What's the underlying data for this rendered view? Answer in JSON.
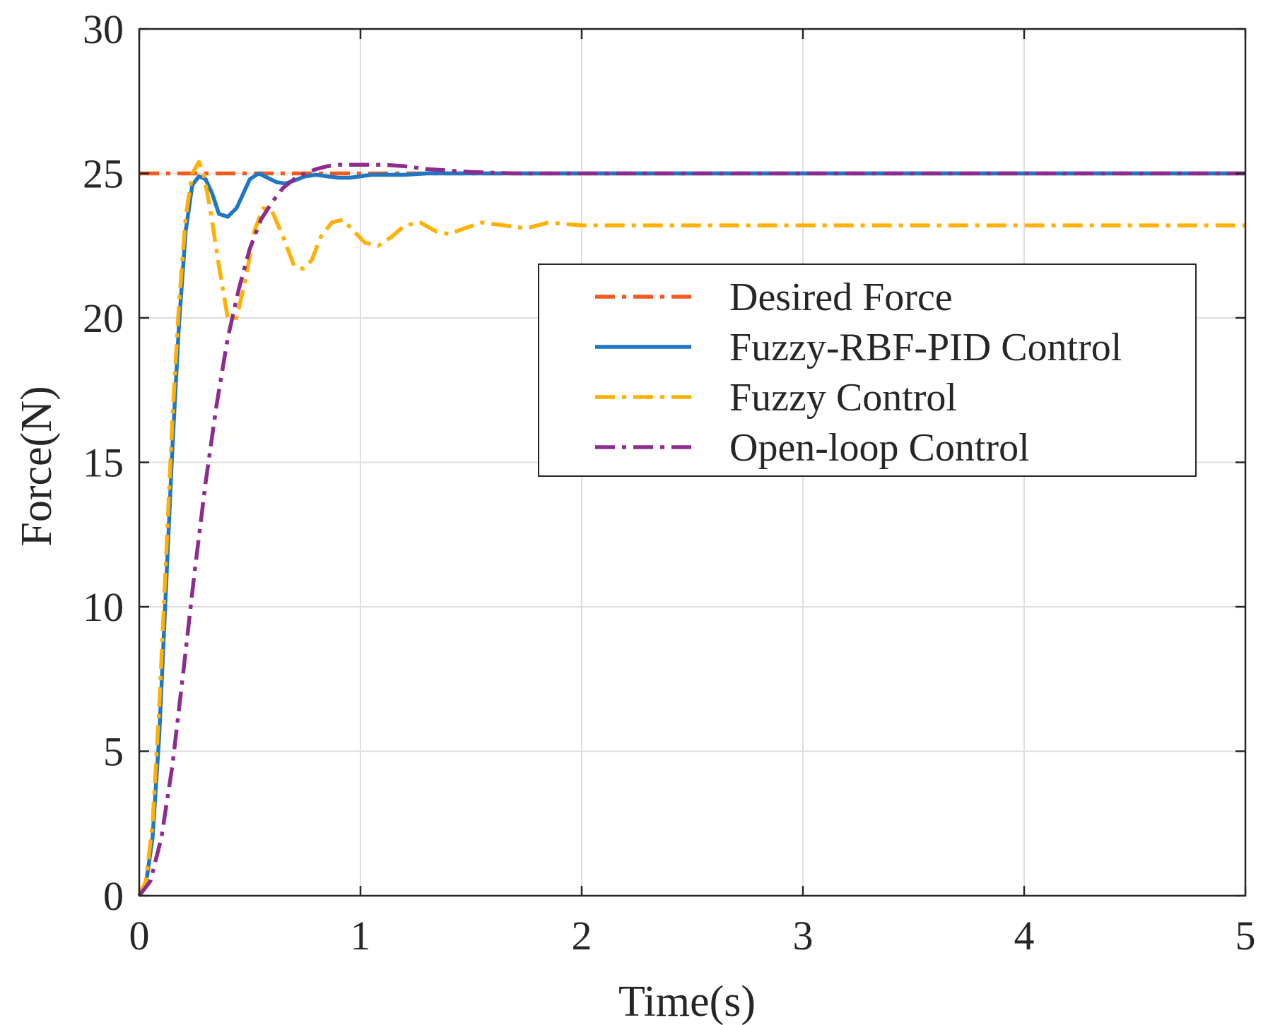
{
  "chart_data": {
    "type": "line",
    "title": "",
    "xlabel": "Time(s)",
    "ylabel": "Force(N)",
    "xlim": [
      0,
      5
    ],
    "ylim": [
      0,
      30
    ],
    "xticks": [
      0,
      1,
      2,
      3,
      4,
      5
    ],
    "yticks": [
      0,
      5,
      10,
      15,
      20,
      25,
      30
    ],
    "grid": true,
    "legend_position": "upper-right",
    "series": [
      {
        "name": "Desired Force",
        "color": "#F25A1E",
        "style": "dash-dot",
        "x": [
          0,
          5
        ],
        "y": [
          25,
          25
        ]
      },
      {
        "name": "Fuzzy-RBF-PID Control",
        "color": "#1F77C4",
        "style": "solid",
        "x": [
          0,
          0.03,
          0.06,
          0.09,
          0.12,
          0.15,
          0.18,
          0.21,
          0.24,
          0.27,
          0.3,
          0.33,
          0.36,
          0.4,
          0.44,
          0.47,
          0.5,
          0.54,
          0.58,
          0.62,
          0.66,
          0.7,
          0.75,
          0.8,
          0.85,
          0.9,
          0.95,
          1.0,
          1.05,
          1.1,
          1.15,
          1.2,
          1.3,
          1.4,
          1.5,
          1.6,
          1.8,
          2.0,
          2.5,
          3.0,
          4.0,
          5.0
        ],
        "y": [
          0,
          0.4,
          2.0,
          5.5,
          10.5,
          15.5,
          19.8,
          23.0,
          24.6,
          24.9,
          24.8,
          24.3,
          23.6,
          23.5,
          23.8,
          24.3,
          24.8,
          25.0,
          24.85,
          24.7,
          24.65,
          24.75,
          24.9,
          24.95,
          24.9,
          24.85,
          24.85,
          24.9,
          24.95,
          24.95,
          24.95,
          24.95,
          25.0,
          25.0,
          25.0,
          25.0,
          25.0,
          25.0,
          25.0,
          25.0,
          25.0,
          25.0
        ]
      },
      {
        "name": "Fuzzy Control",
        "color": "#FFB000",
        "style": "dash-dot",
        "x": [
          0,
          0.03,
          0.06,
          0.09,
          0.12,
          0.15,
          0.18,
          0.21,
          0.24,
          0.27,
          0.29,
          0.32,
          0.36,
          0.4,
          0.44,
          0.48,
          0.52,
          0.56,
          0.6,
          0.65,
          0.7,
          0.74,
          0.78,
          0.82,
          0.87,
          0.92,
          0.97,
          1.02,
          1.08,
          1.14,
          1.2,
          1.27,
          1.34,
          1.4,
          1.47,
          1.55,
          1.65,
          1.75,
          1.85,
          2.0,
          2.2,
          2.5,
          3.0,
          4.0,
          5.0
        ],
        "y": [
          0,
          0.5,
          2.5,
          6.5,
          11.5,
          16.5,
          20.5,
          23.5,
          25.0,
          25.4,
          25.0,
          23.8,
          21.8,
          20.0,
          20.0,
          21.3,
          23.0,
          23.8,
          23.7,
          22.8,
          21.8,
          21.7,
          22.0,
          22.8,
          23.3,
          23.4,
          23.0,
          22.6,
          22.5,
          22.8,
          23.2,
          23.3,
          23.0,
          22.9,
          23.1,
          23.3,
          23.2,
          23.1,
          23.3,
          23.2,
          23.2,
          23.2,
          23.2,
          23.2,
          23.2
        ]
      },
      {
        "name": "Open-loop Control",
        "color": "#8E2C8E",
        "style": "dash-dot",
        "x": [
          0,
          0.05,
          0.1,
          0.15,
          0.2,
          0.25,
          0.3,
          0.35,
          0.4,
          0.45,
          0.5,
          0.55,
          0.6,
          0.65,
          0.7,
          0.75,
          0.8,
          0.85,
          0.9,
          0.95,
          1.0,
          1.05,
          1.1,
          1.2,
          1.3,
          1.4,
          1.5,
          1.7,
          2.0,
          2.5,
          3.0,
          4.0,
          5.0
        ],
        "y": [
          0,
          0.5,
          2.0,
          4.5,
          7.8,
          11.2,
          14.3,
          17.0,
          19.3,
          21.0,
          22.4,
          23.4,
          24.0,
          24.5,
          24.8,
          25.0,
          25.15,
          25.25,
          25.3,
          25.3,
          25.3,
          25.3,
          25.3,
          25.25,
          25.15,
          25.1,
          25.05,
          25.0,
          25.0,
          25.0,
          25.0,
          25.0,
          25.0
        ]
      }
    ]
  }
}
